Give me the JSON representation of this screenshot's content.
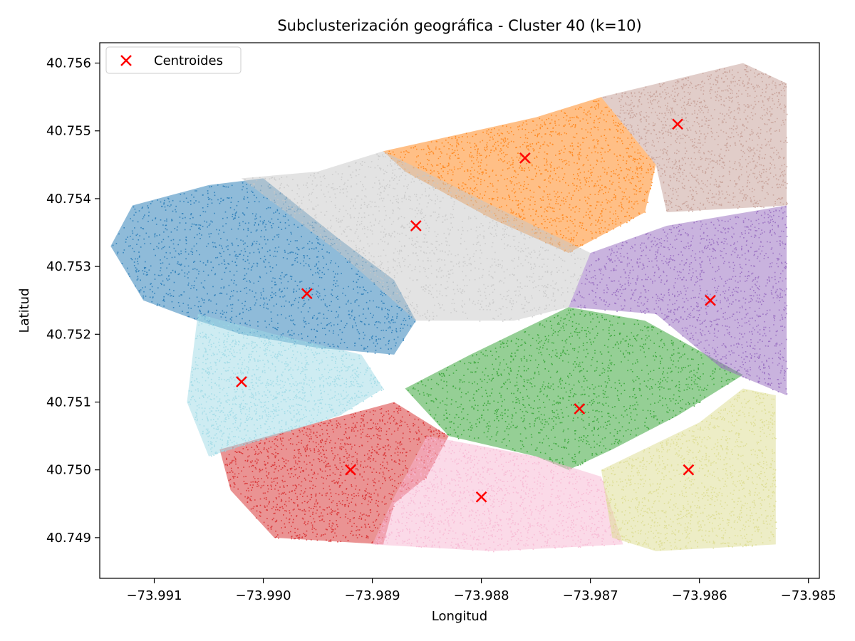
{
  "chart_data": {
    "type": "scatter",
    "title": "Subclusterización geográfica - Cluster 40 (k=10)",
    "xlabel": "Longitud",
    "ylabel": "Latitud",
    "xlim": [
      -73.9915,
      -73.9849
    ],
    "ylim": [
      40.7484,
      40.7563
    ],
    "xticks": [
      -73.991,
      -73.99,
      -73.989,
      -73.988,
      -73.987,
      -73.986,
      -73.985
    ],
    "xtick_labels": [
      "−73.991",
      "−73.990",
      "−73.989",
      "−73.988",
      "−73.987",
      "−73.986",
      "−73.985"
    ],
    "yticks": [
      40.749,
      40.75,
      40.751,
      40.752,
      40.753,
      40.754,
      40.755,
      40.756
    ],
    "ytick_labels": [
      "40.749",
      "40.750",
      "40.751",
      "40.752",
      "40.753",
      "40.754",
      "40.755",
      "40.756"
    ],
    "grid": false,
    "legend": {
      "position": "top-left",
      "entries": [
        "Centroides"
      ]
    },
    "clusters": [
      {
        "color": "#1f77b4",
        "centroid": [
          -73.9896,
          40.7526
        ],
        "region": [
          [
            -73.9912,
            40.7539
          ],
          [
            -73.9905,
            40.7542
          ],
          [
            -73.99,
            40.7543
          ],
          [
            -73.9893,
            40.7534
          ],
          [
            -73.9888,
            40.7528
          ],
          [
            -73.9886,
            40.7522
          ],
          [
            -73.9888,
            40.7517
          ],
          [
            -73.9895,
            40.7518
          ],
          [
            -73.9902,
            40.752
          ],
          [
            -73.9906,
            40.7522
          ],
          [
            -73.9911,
            40.7525
          ],
          [
            -73.9914,
            40.7533
          ]
        ]
      },
      {
        "color": "#ff7f0e",
        "centroid": [
          -73.9876,
          40.7546
        ],
        "region": [
          [
            -73.9889,
            40.7547
          ],
          [
            -73.9875,
            40.7552
          ],
          [
            -73.9869,
            40.7555
          ],
          [
            -73.9864,
            40.7545
          ],
          [
            -73.9865,
            40.7538
          ],
          [
            -73.9872,
            40.7532
          ],
          [
            -73.9879,
            40.7537
          ],
          [
            -73.9887,
            40.7544
          ]
        ]
      },
      {
        "color": "#2ca02c",
        "centroid": [
          -73.9871,
          40.7509
        ],
        "region": [
          [
            -73.9881,
            40.7517
          ],
          [
            -73.9872,
            40.7524
          ],
          [
            -73.9865,
            40.7522
          ],
          [
            -73.9856,
            40.7514
          ],
          [
            -73.9862,
            40.7508
          ],
          [
            -73.9868,
            40.7503
          ],
          [
            -73.9872,
            40.75
          ],
          [
            -73.9875,
            40.7502
          ],
          [
            -73.9883,
            40.7505
          ],
          [
            -73.9887,
            40.7512
          ]
        ]
      },
      {
        "color": "#d62728",
        "centroid": [
          -73.9892,
          40.75
        ],
        "region": [
          [
            -73.9904,
            40.7503
          ],
          [
            -73.9895,
            40.7507
          ],
          [
            -73.9888,
            40.751
          ],
          [
            -73.9883,
            40.7505
          ],
          [
            -73.9885,
            40.7499
          ],
          [
            -73.9888,
            40.7495
          ],
          [
            -73.9889,
            40.7489
          ],
          [
            -73.9899,
            40.749
          ],
          [
            -73.9903,
            40.7497
          ]
        ]
      },
      {
        "color": "#9467bd",
        "centroid": [
          -73.9859,
          40.7525
        ],
        "region": [
          [
            -73.9863,
            40.7536
          ],
          [
            -73.9852,
            40.7539
          ],
          [
            -73.9852,
            40.7511
          ],
          [
            -73.9858,
            40.7515
          ],
          [
            -73.9864,
            40.7523
          ],
          [
            -73.9872,
            40.7524
          ],
          [
            -73.987,
            40.7532
          ]
        ]
      },
      {
        "color": "#c49c94",
        "centroid": [
          -73.9862,
          40.7551
        ],
        "region": [
          [
            -73.9869,
            40.7555
          ],
          [
            -73.9856,
            40.756
          ],
          [
            -73.9852,
            40.7557
          ],
          [
            -73.9852,
            40.7539
          ],
          [
            -73.9863,
            40.7538
          ],
          [
            -73.9864,
            40.7545
          ]
        ]
      },
      {
        "color": "#f7b6d2",
        "centroid": [
          -73.988,
          40.7496
        ],
        "region": [
          [
            -73.9885,
            40.7505
          ],
          [
            -73.9875,
            40.7502
          ],
          [
            -73.9869,
            40.7499
          ],
          [
            -73.9867,
            40.7489
          ],
          [
            -73.9879,
            40.7488
          ],
          [
            -73.989,
            40.7489
          ],
          [
            -73.9888,
            40.7496
          ]
        ]
      },
      {
        "color": "#c7c7c7",
        "centroid": [
          -73.9886,
          40.7536
        ],
        "region": [
          [
            -73.9902,
            40.7543
          ],
          [
            -73.9895,
            40.7544
          ],
          [
            -73.9889,
            40.7547
          ],
          [
            -73.9879,
            40.7539
          ],
          [
            -73.987,
            40.7532
          ],
          [
            -73.9872,
            40.7524
          ],
          [
            -73.9877,
            40.7522
          ],
          [
            -73.9886,
            40.7522
          ],
          [
            -73.9893,
            40.7532
          ]
        ]
      },
      {
        "color": "#dbdb8d",
        "centroid": [
          -73.9861,
          40.75
        ],
        "region": [
          [
            -73.9869,
            40.75
          ],
          [
            -73.986,
            40.7507
          ],
          [
            -73.9856,
            40.7512
          ],
          [
            -73.9853,
            40.7511
          ],
          [
            -73.9853,
            40.7489
          ],
          [
            -73.9864,
            40.7488
          ],
          [
            -73.9868,
            40.749
          ]
        ]
      },
      {
        "color": "#9edae5",
        "centroid": [
          -73.9902,
          40.7513
        ],
        "region": [
          [
            -73.9906,
            40.7523
          ],
          [
            -73.9899,
            40.752
          ],
          [
            -73.9891,
            40.7517
          ],
          [
            -73.9889,
            40.7512
          ],
          [
            -73.9893,
            40.7508
          ],
          [
            -73.9899,
            40.7505
          ],
          [
            -73.9905,
            40.7502
          ],
          [
            -73.9907,
            40.751
          ]
        ]
      }
    ]
  }
}
